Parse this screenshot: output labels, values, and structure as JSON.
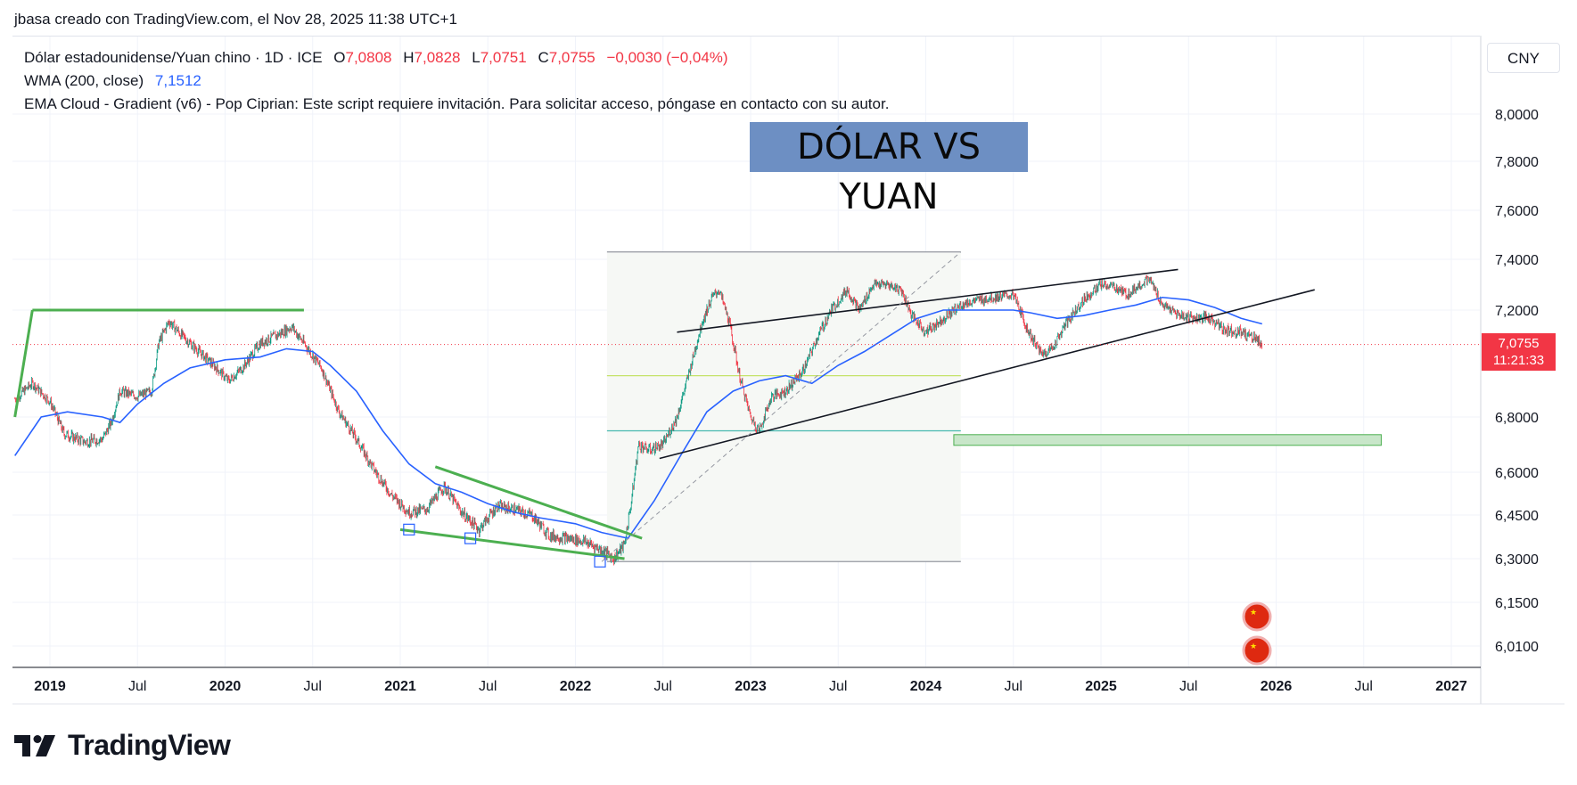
{
  "header": {
    "caption": "jbasa creado con TradingView.com, el Nov 28, 2025 11:38 UTC+1"
  },
  "legend": {
    "symbol": "Dólar estadounidense/Yuan chino · 1D · ICE",
    "o_label": "O",
    "o_value": "7,0808",
    "h_label": "H",
    "h_value": "7,0828",
    "l_label": "L",
    "l_value": "7,0751",
    "c_label": "C",
    "c_value": "7,0755",
    "change": "−0,0030 (−0,04%)",
    "wma_label": "WMA (200, close)",
    "wma_value": "7,1512",
    "ema_note": "EMA Cloud - Gradient (v6) - Pop Ciprian: Este script requiere invitación. Para solicitar acceso, póngase en contacto con su autor."
  },
  "currency_button": "CNY",
  "price_tag": {
    "price": "7,0755",
    "countdown": "11:21:33"
  },
  "brand": {
    "name": "TradingView"
  },
  "colors": {
    "up": "#089981",
    "down": "#f23645",
    "wma": "#2962ff",
    "trend_green": "#4caf50",
    "title_bg": "#6d8fc3",
    "zone_fill": "#c8e6c9"
  },
  "chart_data": {
    "type": "line",
    "title": "DÓLAR VS YUAN",
    "xlabel": "",
    "ylabel": "",
    "y_ticks": [
      "8,0000",
      "7,8000",
      "7,6000",
      "7,4000",
      "7,2000",
      "6,8000",
      "6,6000",
      "6,4500",
      "6,3000",
      "6,1500",
      "6,0100"
    ],
    "x_ticks": [
      {
        "label": "2019",
        "t": 2019.0
      },
      {
        "label": "Jul",
        "t": 2019.5
      },
      {
        "label": "2020",
        "t": 2020.0
      },
      {
        "label": "Jul",
        "t": 2020.5
      },
      {
        "label": "2021",
        "t": 2021.0
      },
      {
        "label": "Jul",
        "t": 2021.5
      },
      {
        "label": "2022",
        "t": 2022.0
      },
      {
        "label": "Jul",
        "t": 2022.5
      },
      {
        "label": "2023",
        "t": 2023.0
      },
      {
        "label": "Jul",
        "t": 2023.5
      },
      {
        "label": "2024",
        "t": 2024.0
      },
      {
        "label": "Jul",
        "t": 2024.5
      },
      {
        "label": "2025",
        "t": 2025.0
      },
      {
        "label": "Jul",
        "t": 2025.5
      },
      {
        "label": "2026",
        "t": 2026.0
      },
      {
        "label": "Jul",
        "t": 2026.5
      },
      {
        "label": "2027",
        "t": 2027.0
      }
    ],
    "xlim": [
      2018.79,
      2027.1
    ],
    "ylim": [
      5.97,
      8.07
    ],
    "grid": true,
    "series": [
      {
        "type": "line",
        "points": [
          [
            2018.8,
            6.87
          ],
          [
            2018.9,
            6.93
          ],
          [
            2019.0,
            6.86
          ],
          [
            2019.08,
            6.74
          ],
          [
            2019.2,
            6.71
          ],
          [
            2019.3,
            6.72
          ],
          [
            2019.35,
            6.78
          ],
          [
            2019.4,
            6.9
          ],
          [
            2019.5,
            6.88
          ],
          [
            2019.58,
            6.9
          ],
          [
            2019.62,
            7.08
          ],
          [
            2019.68,
            7.16
          ],
          [
            2019.75,
            7.11
          ],
          [
            2019.85,
            7.05
          ],
          [
            2019.95,
            6.99
          ],
          [
            2020.02,
            6.94
          ],
          [
            2020.1,
            6.99
          ],
          [
            2020.2,
            7.08
          ],
          [
            2020.3,
            7.11
          ],
          [
            2020.38,
            7.14
          ],
          [
            2020.45,
            7.08
          ],
          [
            2020.55,
            6.99
          ],
          [
            2020.65,
            6.82
          ],
          [
            2020.75,
            6.72
          ],
          [
            2020.85,
            6.61
          ],
          [
            2020.95,
            6.52
          ],
          [
            2021.05,
            6.46
          ],
          [
            2021.15,
            6.47
          ],
          [
            2021.25,
            6.55
          ],
          [
            2021.35,
            6.46
          ],
          [
            2021.45,
            6.4
          ],
          [
            2021.55,
            6.48
          ],
          [
            2021.65,
            6.47
          ],
          [
            2021.75,
            6.45
          ],
          [
            2021.85,
            6.38
          ],
          [
            2021.95,
            6.37
          ],
          [
            2022.05,
            6.36
          ],
          [
            2022.15,
            6.33
          ],
          [
            2022.22,
            6.3
          ],
          [
            2022.28,
            6.35
          ],
          [
            2022.32,
            6.5
          ],
          [
            2022.36,
            6.7
          ],
          [
            2022.42,
            6.68
          ],
          [
            2022.5,
            6.7
          ],
          [
            2022.58,
            6.8
          ],
          [
            2022.66,
            7.0
          ],
          [
            2022.72,
            7.15
          ],
          [
            2022.78,
            7.25
          ],
          [
            2022.82,
            7.28
          ],
          [
            2022.88,
            7.15
          ],
          [
            2022.94,
            6.95
          ],
          [
            2023.0,
            6.8
          ],
          [
            2023.05,
            6.75
          ],
          [
            2023.12,
            6.88
          ],
          [
            2023.2,
            6.9
          ],
          [
            2023.3,
            6.98
          ],
          [
            2023.38,
            7.1
          ],
          [
            2023.46,
            7.2
          ],
          [
            2023.55,
            7.28
          ],
          [
            2023.62,
            7.2
          ],
          [
            2023.7,
            7.3
          ],
          [
            2023.78,
            7.3
          ],
          [
            2023.86,
            7.28
          ],
          [
            2023.92,
            7.18
          ],
          [
            2024.0,
            7.12
          ],
          [
            2024.1,
            7.17
          ],
          [
            2024.2,
            7.22
          ],
          [
            2024.3,
            7.24
          ],
          [
            2024.4,
            7.25
          ],
          [
            2024.5,
            7.26
          ],
          [
            2024.58,
            7.13
          ],
          [
            2024.66,
            7.04
          ],
          [
            2024.72,
            7.06
          ],
          [
            2024.8,
            7.15
          ],
          [
            2024.9,
            7.24
          ],
          [
            2025.0,
            7.3
          ],
          [
            2025.08,
            7.29
          ],
          [
            2025.15,
            7.26
          ],
          [
            2025.22,
            7.3
          ],
          [
            2025.28,
            7.32
          ],
          [
            2025.35,
            7.22
          ],
          [
            2025.45,
            7.18
          ],
          [
            2025.55,
            7.17
          ],
          [
            2025.62,
            7.17
          ],
          [
            2025.7,
            7.13
          ],
          [
            2025.8,
            7.12
          ],
          [
            2025.88,
            7.1
          ],
          [
            2025.92,
            7.0755
          ]
        ]
      },
      {
        "name": "WMA (200, close)",
        "type": "line",
        "points": [
          [
            2018.8,
            6.66
          ],
          [
            2018.95,
            6.8
          ],
          [
            2019.1,
            6.82
          ],
          [
            2019.3,
            6.8
          ],
          [
            2019.4,
            6.78
          ],
          [
            2019.5,
            6.85
          ],
          [
            2019.65,
            6.93
          ],
          [
            2019.8,
            6.99
          ],
          [
            2020.0,
            7.02
          ],
          [
            2020.2,
            7.03
          ],
          [
            2020.35,
            7.06
          ],
          [
            2020.5,
            7.05
          ],
          [
            2020.6,
            7.0
          ],
          [
            2020.75,
            6.9
          ],
          [
            2020.9,
            6.75
          ],
          [
            2021.05,
            6.63
          ],
          [
            2021.2,
            6.56
          ],
          [
            2021.35,
            6.53
          ],
          [
            2021.5,
            6.49
          ],
          [
            2021.65,
            6.46
          ],
          [
            2021.8,
            6.44
          ],
          [
            2022.0,
            6.42
          ],
          [
            2022.15,
            6.39
          ],
          [
            2022.3,
            6.37
          ],
          [
            2022.45,
            6.5
          ],
          [
            2022.6,
            6.66
          ],
          [
            2022.75,
            6.82
          ],
          [
            2022.9,
            6.9
          ],
          [
            2023.05,
            6.94
          ],
          [
            2023.2,
            6.96
          ],
          [
            2023.35,
            6.93
          ],
          [
            2023.5,
            7.0
          ],
          [
            2023.65,
            7.05
          ],
          [
            2023.8,
            7.11
          ],
          [
            2023.95,
            7.17
          ],
          [
            2024.1,
            7.2
          ],
          [
            2024.3,
            7.2
          ],
          [
            2024.5,
            7.2
          ],
          [
            2024.6,
            7.19
          ],
          [
            2024.75,
            7.17
          ],
          [
            2024.9,
            7.18
          ],
          [
            2025.05,
            7.2
          ],
          [
            2025.2,
            7.22
          ],
          [
            2025.35,
            7.25
          ],
          [
            2025.5,
            7.24
          ],
          [
            2025.65,
            7.21
          ],
          [
            2025.8,
            7.17
          ],
          [
            2025.92,
            7.15
          ]
        ]
      }
    ],
    "annotations": {
      "hlines": [
        {
          "y": 7.43,
          "x0": 2022.18,
          "x1": 2024.2
        },
        {
          "y": 6.96,
          "x0": 2022.18,
          "x1": 2024.2
        },
        {
          "y": 6.75,
          "x0": 2022.18,
          "x1": 2024.2
        },
        {
          "y": 6.29,
          "x0": 2022.18,
          "x1": 2024.2
        }
      ],
      "trendlines": [
        {
          "p1": [
            2018.8,
            6.8
          ],
          "p2": [
            2018.9,
            7.2
          ]
        },
        {
          "p1": [
            2018.9,
            7.2
          ],
          "p2": [
            2020.45,
            7.2
          ]
        },
        {
          "p1": [
            2021.2,
            6.62
          ],
          "p2": [
            2022.38,
            6.37
          ]
        },
        {
          "p1": [
            2021.0,
            6.4
          ],
          "p2": [
            2022.28,
            6.3
          ]
        },
        {
          "p1": [
            2022.48,
            6.65
          ],
          "p2": [
            2026.22,
            7.28
          ]
        },
        {
          "p1": [
            2022.58,
            7.12
          ],
          "p2": [
            2025.44,
            7.36
          ]
        },
        {
          "p1": [
            2022.15,
            6.29
          ],
          "p2": [
            2024.2,
            7.43
          ]
        }
      ],
      "zone": {
        "x0": 2024.16,
        "x1": 2026.6,
        "y0": 6.7,
        "y1": 6.72
      }
    }
  }
}
